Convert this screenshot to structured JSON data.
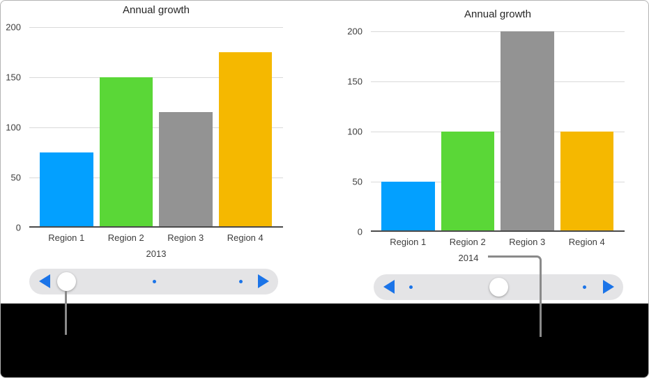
{
  "frame": {
    "background": "#ffffff",
    "border_color": "#b4b4b4",
    "caption_area_color": "#000000"
  },
  "colors": {
    "accent_blue": "#1b74e8",
    "slider_track": "#e4e4e6",
    "slider_knob": "#ffffff",
    "gridline": "#d9d9d9",
    "axis": "#4a4a4a",
    "text": "#3d3d3d",
    "callout_line": "#8a8a8a"
  },
  "chart_data": [
    {
      "type": "bar",
      "title": "Annual growth",
      "categories": [
        "Region 1",
        "Region 2",
        "Region 3",
        "Region 4"
      ],
      "values": [
        75,
        150,
        115,
        175
      ],
      "xlabel": "2013",
      "ylabel": "",
      "ylim": [
        0,
        200
      ],
      "yticks": [
        0,
        50,
        100,
        150,
        200
      ],
      "grid": true,
      "legend": false,
      "bar_colors": [
        "#03a0ff",
        "#5ad737",
        "#939393",
        "#f5b800"
      ]
    },
    {
      "type": "bar",
      "title": "Annual growth",
      "categories": [
        "Region 1",
        "Region 2",
        "Region 3",
        "Region 4"
      ],
      "values": [
        50,
        100,
        200,
        100
      ],
      "xlabel": "2014",
      "ylabel": "",
      "ylim": [
        0,
        200
      ],
      "yticks": [
        0,
        50,
        100,
        150,
        200
      ],
      "grid": true,
      "legend": false,
      "bar_colors": [
        "#03a0ff",
        "#5ad737",
        "#939393",
        "#f5b800"
      ]
    }
  ],
  "sliders": [
    {
      "name": "timeline-slider-2013",
      "stops": 3,
      "selected_stop": 1,
      "left_arrow_icon": "previous-arrow",
      "right_arrow_icon": "next-arrow",
      "dot_icon": "position-dot"
    },
    {
      "name": "timeline-slider-2014",
      "stops": 3,
      "selected_stop": 2,
      "left_arrow_icon": "previous-arrow",
      "right_arrow_icon": "next-arrow",
      "dot_icon": "position-dot"
    }
  ]
}
